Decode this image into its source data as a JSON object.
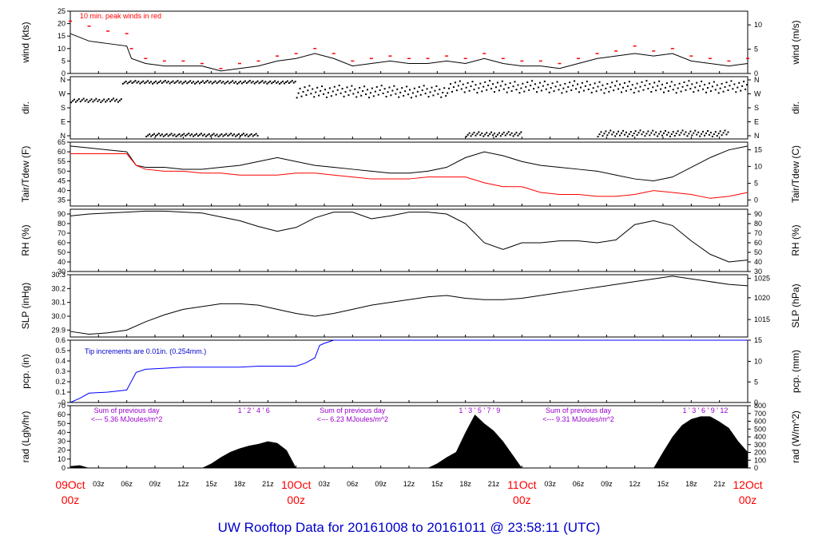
{
  "chart_data": [
    {
      "type": "line",
      "ylabel_left": "wind (kts)",
      "ylabel_right": "wind (m/s)",
      "annotation": "10 min. peak winds in red",
      "colors": {
        "series": "#000000",
        "peak": "#ff0000"
      },
      "ylim": [
        0,
        25
      ],
      "yticks_left": [
        "0",
        "5",
        "10",
        "15",
        "20",
        "25"
      ],
      "yticks_right": [
        "0",
        "5",
        "10"
      ],
      "series": [
        {
          "x": [
            0,
            2,
            4,
            6,
            6.5,
            8,
            10,
            12,
            14,
            16,
            18,
            20,
            22,
            24,
            26,
            28,
            30,
            32,
            34,
            36,
            38,
            40,
            42,
            44,
            46,
            48,
            50,
            52,
            54,
            56,
            58,
            60,
            62,
            64,
            66,
            68,
            70,
            72
          ],
          "values": [
            16,
            13,
            12,
            11,
            6,
            4,
            3,
            3,
            3,
            1,
            2,
            3,
            5,
            6,
            8,
            6,
            3,
            4,
            5,
            4,
            4,
            5,
            4,
            6,
            4,
            3,
            3,
            2,
            4,
            6,
            7,
            8,
            7,
            8,
            5,
            4,
            3,
            4
          ]
        },
        {
          "x": [
            0,
            2,
            4,
            6,
            6.5,
            8,
            10,
            12,
            14,
            16,
            18,
            20,
            22,
            24,
            26,
            28,
            30,
            32,
            34,
            36,
            38,
            40,
            42,
            44,
            46,
            48,
            50,
            52,
            54,
            56,
            58,
            60,
            62,
            64,
            66,
            68,
            70,
            72
          ],
          "values": [
            21,
            19,
            17,
            16,
            10,
            6,
            5,
            5,
            4,
            2,
            4,
            5,
            7,
            8,
            10,
            8,
            5,
            6,
            7,
            6,
            6,
            7,
            6,
            8,
            6,
            5,
            5,
            4,
            6,
            8,
            9,
            11,
            9,
            10,
            7,
            6,
            5,
            6
          ]
        }
      ]
    },
    {
      "type": "scatter",
      "ylabel_left": "dir.",
      "ylabel_right": "dir.",
      "yticks_left": [
        "N",
        "W",
        "S",
        "E",
        "N"
      ],
      "yticks_right": [
        "N",
        "W",
        "S",
        "E",
        "N"
      ],
      "ylim": [
        0,
        360
      ],
      "colors": {
        "series": "#000000"
      },
      "segments": [
        {
          "x": [
            0,
            5.5
          ],
          "y": [
            220,
            245
          ]
        },
        {
          "x": [
            5.5,
            24
          ],
          "y": [
            340,
            360
          ]
        },
        {
          "x": [
            24,
            40
          ],
          "y": [
            250,
            330
          ]
        },
        {
          "x": [
            40,
            72
          ],
          "y": [
            280,
            360
          ]
        },
        {
          "x": [
            8,
            20
          ],
          "y": [
            0,
            20
          ]
        },
        {
          "x": [
            42,
            48
          ],
          "y": [
            0,
            30
          ]
        },
        {
          "x": [
            56,
            70
          ],
          "y": [
            0,
            40
          ]
        }
      ]
    },
    {
      "type": "line",
      "ylabel_left": "Tair/Tdew (F)",
      "ylabel_right": "Tair/Tdew (C)",
      "ylim": [
        32,
        65
      ],
      "yticks_left": [
        "35",
        "40",
        "45",
        "50",
        "55",
        "60",
        "65"
      ],
      "yticks_right": [
        "0",
        "5",
        "10",
        "15"
      ],
      "colors": {
        "tair": "#000000",
        "tdew": "#ff0000"
      },
      "series": [
        {
          "x": [
            0,
            2,
            4,
            6,
            7,
            8,
            10,
            12,
            14,
            16,
            18,
            20,
            22,
            24,
            26,
            28,
            30,
            32,
            34,
            36,
            38,
            40,
            42,
            44,
            46,
            48,
            50,
            52,
            54,
            56,
            58,
            60,
            62,
            64,
            66,
            68,
            70,
            72
          ],
          "values": [
            63,
            62,
            61,
            60,
            53,
            52,
            52,
            51,
            51,
            52,
            53,
            55,
            57,
            55,
            53,
            52,
            51,
            50,
            49,
            49,
            50,
            52,
            57,
            60,
            58,
            55,
            53,
            52,
            51,
            50,
            48,
            46,
            45,
            47,
            52,
            57,
            61,
            63
          ]
        },
        {
          "x": [
            0,
            2,
            4,
            6,
            7,
            8,
            10,
            12,
            14,
            16,
            18,
            20,
            22,
            24,
            26,
            28,
            30,
            32,
            34,
            36,
            38,
            40,
            42,
            44,
            46,
            48,
            50,
            52,
            54,
            56,
            58,
            60,
            62,
            64,
            66,
            68,
            70,
            72
          ],
          "values": [
            59,
            59,
            59,
            59,
            53,
            51,
            50,
            50,
            49,
            49,
            48,
            48,
            48,
            49,
            49,
            48,
            47,
            46,
            46,
            46,
            47,
            47,
            47,
            44,
            42,
            42,
            39,
            38,
            38,
            37,
            37,
            38,
            40,
            39,
            38,
            36,
            37,
            39
          ]
        }
      ]
    },
    {
      "type": "line",
      "ylabel_left": "RH (%)",
      "ylabel_right": "RH (%)",
      "ylim": [
        30,
        95
      ],
      "yticks_left": [
        "30",
        "40",
        "50",
        "60",
        "70",
        "80",
        "90"
      ],
      "yticks_right": [
        "30",
        "40",
        "50",
        "60",
        "70",
        "80",
        "90"
      ],
      "colors": {
        "series": "#000000"
      },
      "series": [
        {
          "x": [
            0,
            2,
            4,
            6,
            8,
            10,
            12,
            14,
            16,
            18,
            20,
            22,
            24,
            26,
            28,
            30,
            32,
            34,
            36,
            38,
            40,
            42,
            44,
            46,
            48,
            50,
            52,
            54,
            56,
            58,
            60,
            62,
            64,
            66,
            68,
            70,
            72
          ],
          "values": [
            88,
            90,
            91,
            92,
            93,
            93,
            92,
            91,
            87,
            83,
            77,
            72,
            76,
            86,
            92,
            92,
            85,
            88,
            92,
            92,
            90,
            80,
            60,
            53,
            60,
            60,
            62,
            62,
            60,
            63,
            79,
            83,
            78,
            62,
            48,
            40,
            42
          ]
        }
      ]
    },
    {
      "type": "line",
      "ylabel_left": "SLP (inHg)",
      "ylabel_right": "SLP (hPa)",
      "ylim": [
        29.85,
        30.3
      ],
      "yticks_left": [
        "29.9",
        "30.0",
        "30.1",
        "30.2",
        "30.3"
      ],
      "yticks_right": [
        "1015",
        "1020",
        "1025"
      ],
      "colors": {
        "series": "#000000"
      },
      "series": [
        {
          "x": [
            0,
            2,
            4,
            6,
            8,
            10,
            12,
            14,
            16,
            18,
            20,
            22,
            24,
            26,
            28,
            30,
            32,
            34,
            36,
            38,
            40,
            42,
            44,
            46,
            48,
            50,
            52,
            54,
            56,
            58,
            60,
            62,
            64,
            66,
            68,
            70,
            72
          ],
          "values": [
            29.89,
            29.87,
            29.88,
            29.9,
            29.96,
            30.01,
            30.05,
            30.07,
            30.09,
            30.09,
            30.08,
            30.05,
            30.02,
            30.0,
            30.02,
            30.05,
            30.08,
            30.1,
            30.12,
            30.14,
            30.15,
            30.13,
            30.12,
            30.12,
            30.13,
            30.15,
            30.17,
            30.19,
            30.21,
            30.23,
            30.25,
            30.27,
            30.29,
            30.27,
            30.25,
            30.23,
            30.22
          ]
        }
      ]
    },
    {
      "type": "line",
      "ylabel_left": "pcp. (in)",
      "ylabel_right": "pcp. (mm)",
      "annotation": "Tip increments are 0.01in. (0.254mm.)",
      "ylim": [
        0,
        0.6
      ],
      "yticks_left": [
        "0",
        "0.1",
        "0.2",
        "0.3",
        "0.4",
        "0.5",
        "0.6"
      ],
      "yticks_right": [
        "0",
        "5",
        "10",
        "15"
      ],
      "colors": {
        "series": "#0000ff",
        "annotation": "#0000cc"
      },
      "series": [
        {
          "x": [
            0,
            1,
            2,
            4,
            6,
            7,
            8,
            10,
            12,
            14,
            16,
            18,
            20,
            22,
            24,
            25,
            26,
            26.5,
            27,
            28,
            30,
            32,
            40,
            50,
            60,
            72
          ],
          "values": [
            0,
            0.04,
            0.09,
            0.1,
            0.12,
            0.29,
            0.32,
            0.33,
            0.34,
            0.34,
            0.34,
            0.34,
            0.35,
            0.35,
            0.35,
            0.38,
            0.43,
            0.55,
            0.57,
            0.6,
            0.6,
            0.6,
            0.6,
            0.6,
            0.6,
            0.6
          ]
        }
      ]
    },
    {
      "type": "area",
      "ylabel_left": "rad (Lgly/hr)",
      "ylabel_right": "rad (W/m^2)",
      "ylim": [
        0,
        70
      ],
      "yticks_left": [
        "0",
        "10",
        "20",
        "30",
        "40",
        "50",
        "60",
        "70"
      ],
      "yticks_right": [
        "0",
        "100",
        "200",
        "300",
        "400",
        "500",
        "600",
        "700",
        "800"
      ],
      "colors": {
        "fill": "#000000",
        "annotation": "#9900cc"
      },
      "annotations": [
        {
          "line1": "Sum of previous day",
          "line2": "<--- 5.36 MJoules/m^2",
          "hours": "1  ' 2  '  4  '  6"
        },
        {
          "line1": "Sum of previous day",
          "line2": "<--- 6.23 MJoules/m^2",
          "hours": "1  ' 3  '  5 ' 7  '  9"
        },
        {
          "line1": "Sum of previous day",
          "line2": "<--- 9.31 MJoules/m^2",
          "hours": "1  ' 3  ' 6  ' 9  ' 12"
        }
      ],
      "series": [
        {
          "x": [
            0,
            1,
            2,
            14,
            15,
            16,
            17,
            18,
            19,
            20,
            21,
            22,
            23,
            24,
            38,
            39,
            40,
            41,
            42,
            43,
            44,
            45,
            46,
            47,
            48,
            62,
            63,
            64,
            65,
            66,
            67,
            68,
            69,
            70,
            71,
            72
          ],
          "values": [
            2,
            3,
            0,
            0,
            5,
            12,
            18,
            22,
            25,
            27,
            30,
            28,
            20,
            0,
            0,
            5,
            12,
            18,
            40,
            60,
            50,
            42,
            30,
            15,
            0,
            0,
            18,
            35,
            48,
            55,
            58,
            58,
            52,
            45,
            30,
            18
          ]
        }
      ]
    }
  ],
  "xaxis": {
    "hour_labels": [
      "03z",
      "06z",
      "09z",
      "12z",
      "15z",
      "18z",
      "21z",
      "03z",
      "06z",
      "09z",
      "12z",
      "15z",
      "18z",
      "21z",
      "03z",
      "06z",
      "09z",
      "12z",
      "15z",
      "18z",
      "21z"
    ],
    "date_labels": [
      {
        "date": "09Oct",
        "hour": "00z"
      },
      {
        "date": "10Oct",
        "hour": "00z"
      },
      {
        "date": "11Oct",
        "hour": "00z"
      },
      {
        "date": "12Oct",
        "hour": "00z"
      }
    ],
    "range_hours": [
      0,
      72
    ]
  },
  "title": "UW Rooftop Data for 20161008  to  20161011 @ 23:58:11  (UTC)"
}
